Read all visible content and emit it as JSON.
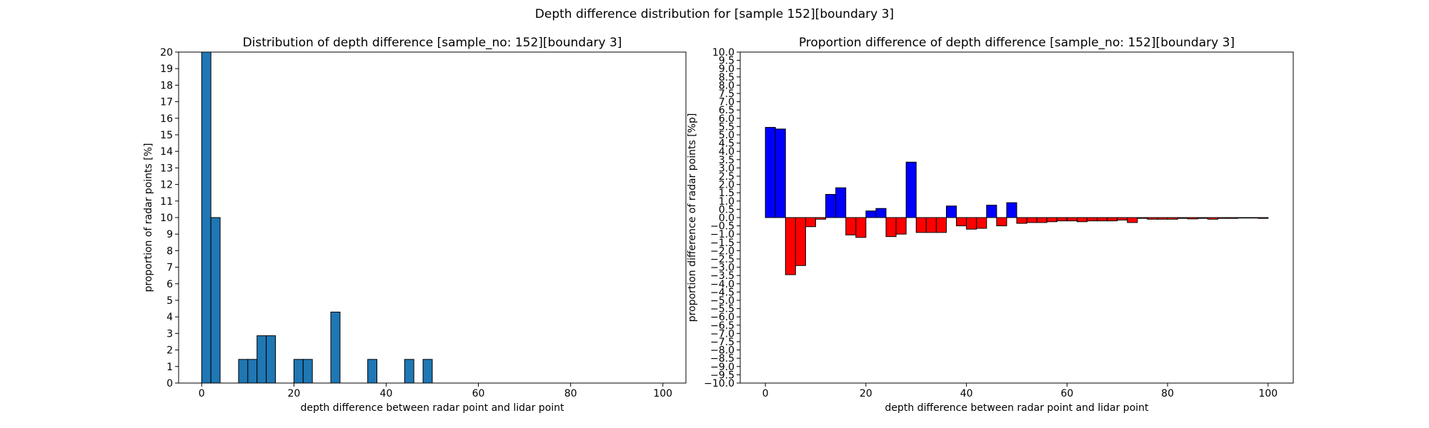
{
  "figure": {
    "suptitle": "Depth difference distribution for [sample 152][boundary 3]"
  },
  "chart_data": [
    {
      "type": "bar",
      "title": "Distribution of depth difference [sample_no: 152][boundary 3]",
      "xlabel": "depth difference between radar point and lidar point",
      "ylabel": "proportion of radar points [%]",
      "xlim": [
        -5,
        105
      ],
      "ylim": [
        0,
        20
      ],
      "xticks": [
        0,
        20,
        40,
        60,
        80,
        100
      ],
      "yticks": [
        0,
        1,
        2,
        3,
        4,
        5,
        6,
        7,
        8,
        9,
        10,
        11,
        12,
        13,
        14,
        15,
        16,
        17,
        18,
        19,
        20
      ],
      "bin_width": 2,
      "bar_color": "#1f77b4",
      "bins_start": [
        0,
        2,
        8,
        10,
        12,
        14,
        20,
        22,
        28,
        36,
        44,
        48
      ],
      "values": [
        20.0,
        10.0,
        1.43,
        1.43,
        2.86,
        2.86,
        1.43,
        1.43,
        4.29,
        1.43,
        1.43,
        1.43
      ]
    },
    {
      "type": "bar",
      "title": "Proportion difference of depth difference [sample_no: 152][boundary 3]",
      "xlabel": "depth difference between radar point and lidar point",
      "ylabel": "proportion difference of radar points [%p]",
      "xlim": [
        -5,
        105
      ],
      "ylim": [
        -10,
        10
      ],
      "xticks": [
        0,
        20,
        40,
        60,
        80,
        100
      ],
      "yticks": [
        -10.0,
        -9.5,
        -9.0,
        -8.5,
        -8.0,
        -7.5,
        -7.0,
        -6.5,
        -6.0,
        -5.5,
        -5.0,
        -4.5,
        -4.0,
        -3.5,
        -3.0,
        -2.5,
        -2.0,
        -1.5,
        -1.0,
        -0.5,
        0.0,
        0.5,
        1.0,
        1.5,
        2.0,
        2.5,
        3.0,
        3.5,
        4.0,
        4.5,
        5.0,
        5.5,
        6.0,
        6.5,
        7.0,
        7.5,
        8.0,
        8.5,
        9.0,
        9.5,
        10.0
      ],
      "bin_width": 2,
      "positive_color": "#0000ff",
      "negative_color": "#ff0000",
      "bins_start": [
        0,
        2,
        4,
        6,
        8,
        10,
        12,
        14,
        16,
        18,
        20,
        22,
        24,
        26,
        28,
        30,
        32,
        34,
        36,
        38,
        40,
        42,
        44,
        46,
        48,
        50,
        52,
        54,
        56,
        58,
        60,
        62,
        64,
        66,
        68,
        70,
        72,
        74,
        76,
        78,
        80,
        82,
        84,
        86,
        88,
        90,
        92,
        94,
        96,
        98
      ],
      "values": [
        5.45,
        5.35,
        -3.45,
        -2.9,
        -0.55,
        -0.1,
        1.4,
        1.8,
        -1.05,
        -1.2,
        0.4,
        0.55,
        -1.15,
        -1.0,
        3.35,
        -0.9,
        -0.9,
        -0.9,
        0.7,
        -0.5,
        -0.7,
        -0.65,
        0.75,
        -0.5,
        0.9,
        -0.35,
        -0.3,
        -0.3,
        -0.25,
        -0.2,
        -0.2,
        -0.25,
        -0.2,
        -0.2,
        -0.2,
        -0.15,
        -0.3,
        -0.05,
        -0.1,
        -0.1,
        -0.1,
        -0.05,
        -0.08,
        -0.05,
        -0.1,
        -0.05,
        -0.05,
        -0.03,
        -0.03,
        -0.05
      ]
    }
  ]
}
